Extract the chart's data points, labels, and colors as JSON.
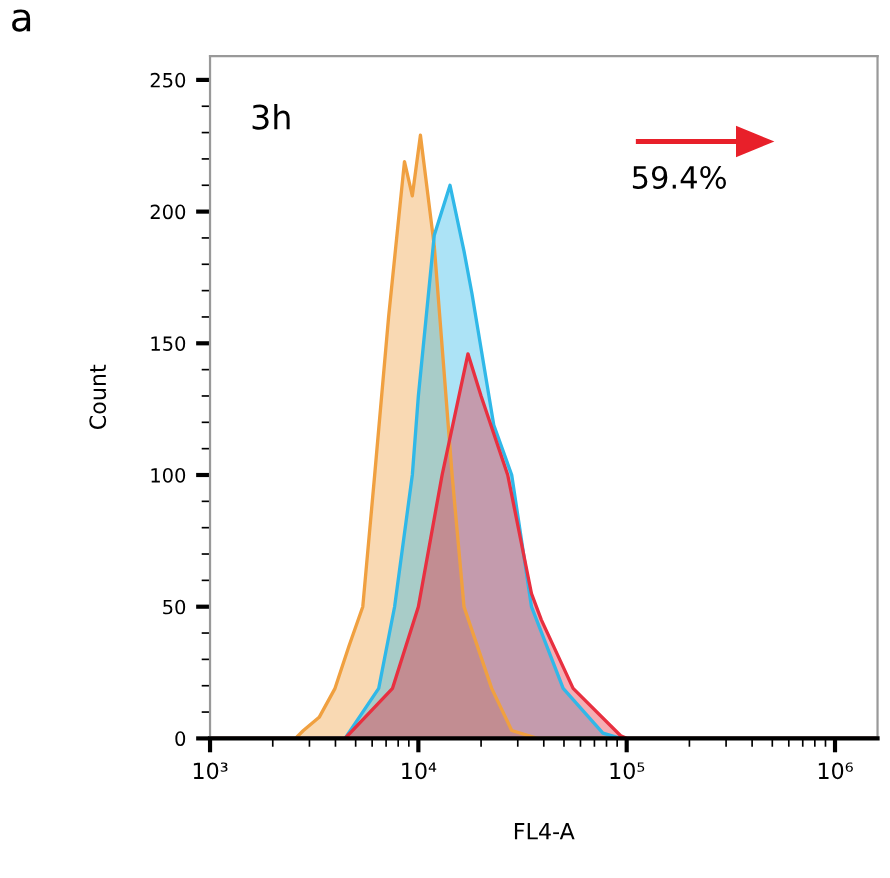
{
  "chart_data": {
    "type": "area",
    "xlabel": "FL4-A",
    "ylabel": "Count",
    "log": "x",
    "xlim": [
      1000,
      1600000
    ],
    "ylim": [
      0,
      259
    ],
    "xticks": [
      {
        "value": 1000,
        "label": "10³"
      },
      {
        "value": 10000,
        "label": "10⁴"
      },
      {
        "value": 100000,
        "label": "10⁵"
      },
      {
        "value": 1000000,
        "label": "10⁶"
      }
    ],
    "yticks": [
      0,
      50,
      100,
      150,
      200,
      250
    ],
    "grid": false,
    "annotations": [
      "a",
      "3h",
      "59.4%"
    ],
    "series": [
      {
        "color": "#f0a040",
        "x": [
          1000,
          2570,
          2806,
          3340,
          3981,
          4641,
          5410,
          6170,
          7197,
          8577,
          9354,
          10230,
          11920,
          14520,
          16560,
          22490,
          28060,
          37250,
          1600000
        ],
        "values": [
          0,
          0,
          3,
          8,
          19,
          35,
          50,
          100,
          160,
          219,
          206,
          229,
          187,
          100,
          50,
          19,
          3,
          0,
          0
        ]
      },
      {
        "color": "#30b8e8",
        "x": [
          1000,
          4446,
          6452,
          7690,
          9354,
          10000,
          11920,
          14190,
          16560,
          18070,
          23010,
          28060,
          34910,
          49550,
          76870,
          93570,
          1600000
        ],
        "values": [
          0,
          0,
          19,
          50,
          100,
          130,
          191,
          210,
          185,
          169,
          119,
          100,
          50,
          19,
          2,
          0,
          0
        ]
      },
      {
        "color": "#e83040",
        "x": [
          1000,
          4446,
          7516,
          10000,
          13000,
          17300,
          20000,
          26850,
          34910,
          38930,
          55310,
          93570,
          100000,
          1600000
        ],
        "values": [
          0,
          0,
          19,
          50,
          100,
          146,
          130,
          100,
          55,
          45,
          19,
          1,
          0,
          0
        ]
      }
    ]
  }
}
